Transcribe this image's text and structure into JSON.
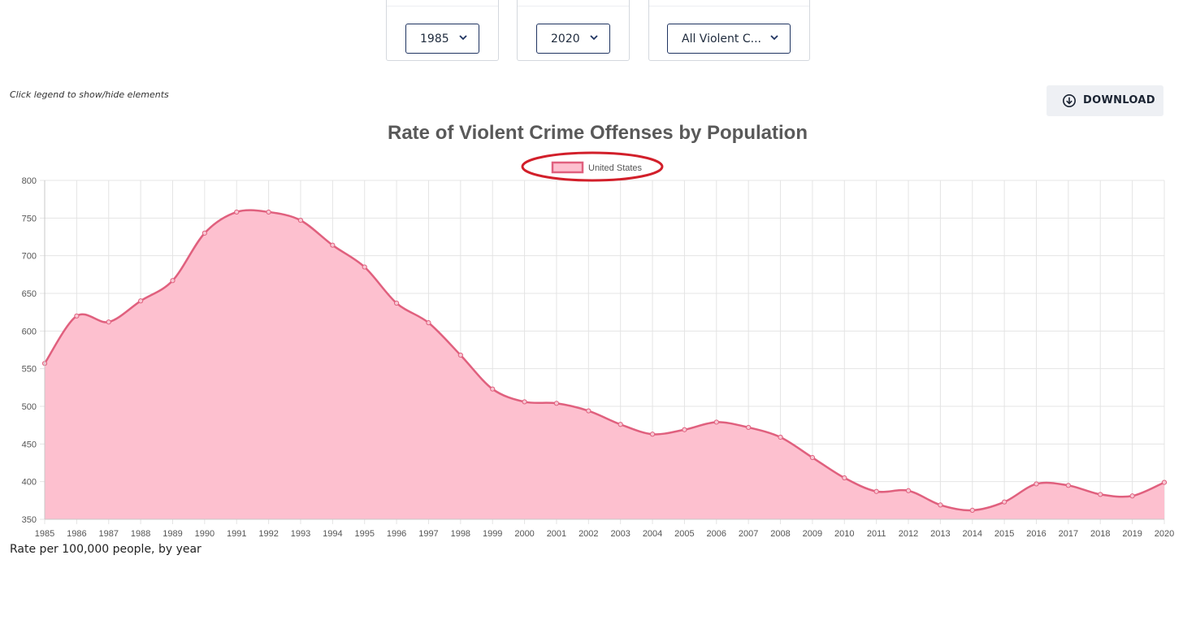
{
  "filters": {
    "start_year": "1985",
    "end_year": "2020",
    "offense": "All Violent C..."
  },
  "hint_text": "Click legend to show/hide elements",
  "download_label": "DOWNLOAD",
  "footnote": "Rate per 100,000 people, by year",
  "colors": {
    "series_line": "#e0607e",
    "series_fill": "#fdc0cf",
    "highlight": "#d21f2a",
    "control_border": "#1f3461"
  },
  "chart_data": {
    "type": "area",
    "title": "Rate of Violent Crime Offenses by Population",
    "xlabel": "",
    "ylabel": "",
    "ylim": [
      350,
      800
    ],
    "yticks": [
      350,
      400,
      450,
      500,
      550,
      600,
      650,
      700,
      750,
      800
    ],
    "grid": true,
    "legend_position": "top-center",
    "legend_highlighted": true,
    "categories": [
      "1985",
      "1986",
      "1987",
      "1988",
      "1989",
      "1990",
      "1991",
      "1992",
      "1993",
      "1994",
      "1995",
      "1996",
      "1997",
      "1998",
      "1999",
      "2000",
      "2001",
      "2002",
      "2003",
      "2004",
      "2005",
      "2006",
      "2007",
      "2008",
      "2009",
      "2010",
      "2011",
      "2012",
      "2013",
      "2014",
      "2015",
      "2016",
      "2017",
      "2018",
      "2019",
      "2020"
    ],
    "series": [
      {
        "name": "United States",
        "values": [
          557,
          620,
          612,
          640,
          667,
          730,
          758,
          758,
          747,
          714,
          685,
          637,
          611,
          568,
          523,
          506,
          504,
          494,
          476,
          463,
          469,
          479,
          472,
          459,
          432,
          405,
          387,
          388,
          369,
          362,
          373,
          397,
          395,
          383,
          381,
          399
        ]
      }
    ]
  }
}
